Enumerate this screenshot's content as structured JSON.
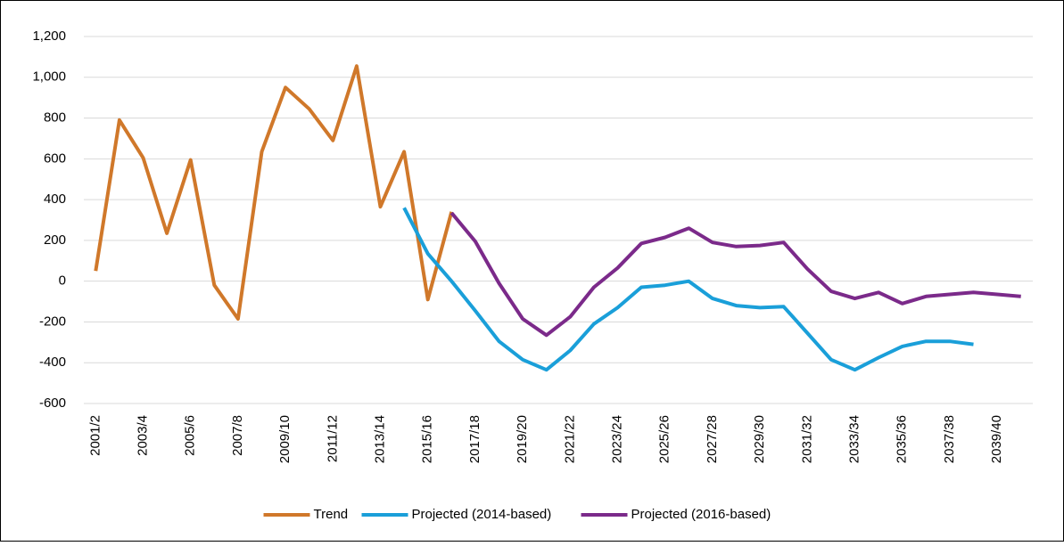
{
  "chart_data": {
    "type": "line",
    "categories": [
      "2001/2",
      null,
      "2003/4",
      null,
      "2005/6",
      null,
      "2007/8",
      null,
      "2009/10",
      null,
      "2011/12",
      null,
      "2013/14",
      null,
      "2015/16",
      null,
      "2017/18",
      null,
      "2019/20",
      null,
      "2021/22",
      null,
      "2023/24",
      null,
      "2025/26",
      null,
      "2027/28",
      null,
      "2029/30",
      null,
      "2031/32",
      null,
      "2033/34",
      null,
      "2035/36",
      null,
      "2037/38",
      null,
      "2039/40",
      null
    ],
    "series": [
      {
        "name": "Trend",
        "color": "#d0782a",
        "values": [
          50,
          790,
          605,
          235,
          595,
          -20,
          -185,
          635,
          950,
          845,
          690,
          1055,
          365,
          635,
          -90,
          340,
          null,
          null,
          null,
          null,
          null,
          null,
          null,
          null,
          null,
          null,
          null,
          null,
          null,
          null,
          null,
          null,
          null,
          null,
          null,
          null,
          null,
          null,
          null,
          null
        ]
      },
      {
        "name": "Projected (2014-based)",
        "color": "#1a9fd9",
        "values": [
          null,
          null,
          null,
          null,
          null,
          null,
          null,
          null,
          null,
          null,
          null,
          null,
          null,
          360,
          135,
          0,
          -145,
          -295,
          -385,
          -435,
          -340,
          -210,
          -130,
          -30,
          -20,
          0,
          -85,
          -120,
          -130,
          -125,
          -255,
          -385,
          -435,
          -375,
          -320,
          -295,
          -295,
          -310,
          null,
          null
        ]
      },
      {
        "name": "Projected (2016-based)",
        "color": "#7b2a8a",
        "values": [
          null,
          null,
          null,
          null,
          null,
          null,
          null,
          null,
          null,
          null,
          null,
          null,
          null,
          null,
          null,
          335,
          195,
          -10,
          -185,
          -265,
          -175,
          -30,
          65,
          185,
          215,
          260,
          190,
          170,
          175,
          190,
          60,
          -50,
          -85,
          -55,
          -110,
          -75,
          -65,
          -55,
          -65,
          -75
        ]
      }
    ],
    "ylim": [
      -600,
      1200
    ],
    "yticks": [
      {
        "value": -600,
        "label": "-600"
      },
      {
        "value": -400,
        "label": "-400"
      },
      {
        "value": -200,
        "label": "-200"
      },
      0,
      200,
      400,
      600,
      800,
      {
        "value": 1000,
        "label": "1,000"
      },
      {
        "value": 1200,
        "label": "1,200"
      }
    ],
    "grid": true,
    "legend": "bottom"
  }
}
